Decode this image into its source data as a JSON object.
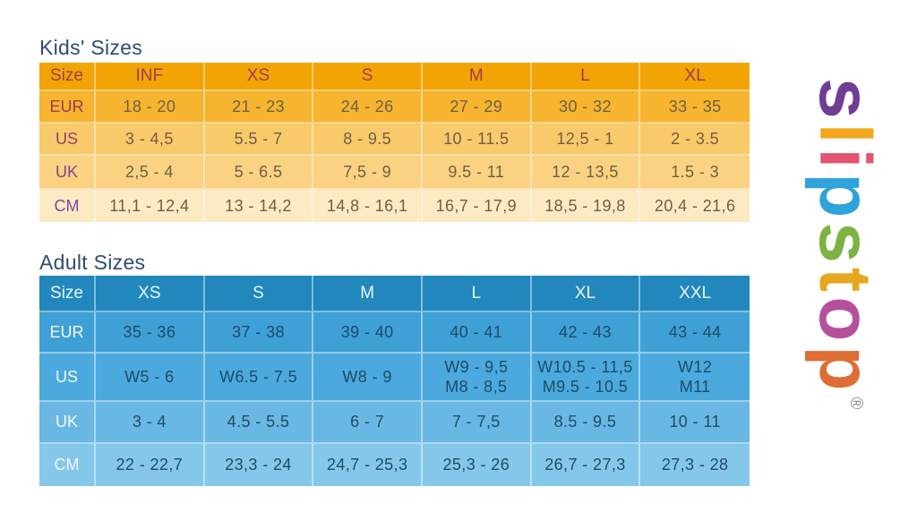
{
  "titles_color": "#2E4D6E",
  "kids_table": {
    "title": "Kids' Sizes",
    "columns": [
      "Size",
      "INF",
      "XS",
      "S",
      "M",
      "L",
      "XL"
    ],
    "rows": [
      {
        "label": "EUR",
        "values": [
          "18 - 20",
          "21 - 23",
          "24 - 26",
          "27 - 29",
          "30 - 32",
          "33 - 35"
        ]
      },
      {
        "label": "US",
        "values": [
          "3 - 4,5",
          "5.5 - 7",
          "8 - 9.5",
          "10 - 11.5",
          "12,5 - 1",
          "2 - 3.5"
        ]
      },
      {
        "label": "UK",
        "values": [
          "2,5 - 4",
          "5 - 6.5",
          "7,5 - 9",
          "9.5 - 11",
          "12 - 13,5",
          "1.5 - 3"
        ]
      },
      {
        "label": "CM",
        "values": [
          "11,1 - 12,4",
          "13 - 14,2",
          "14,8 - 16,1",
          "16,7 - 17,9",
          "18,5 - 19,8",
          "20,4 - 21,6"
        ]
      }
    ],
    "colors": {
      "header_bg": "#F2A405",
      "header_text": "#A23B52",
      "row_bgs": [
        "#F6B42F",
        "#F9CA69",
        "#FAD282",
        "#FCEAC3"
      ],
      "label_texts": [
        "#9C3A56",
        "#934070",
        "#7E4492",
        "#7A4A9E"
      ],
      "data_text": "#6E5F45"
    }
  },
  "adult_table": {
    "title": "Adult Sizes",
    "columns": [
      "Size",
      "XS",
      "S",
      "M",
      "L",
      "XL",
      "XXL"
    ],
    "rows": [
      {
        "label": "EUR",
        "values": [
          "35 - 36",
          "37 - 38",
          "39 - 40",
          "40 - 41",
          "42 - 43",
          "43 - 44"
        ]
      },
      {
        "label": "US",
        "values": [
          "W5 - 6",
          "W6.5 - 7.5",
          "W8 - 9",
          "W9 - 9,5\nM8 - 8,5",
          "W10.5 - 11,5\nM9.5 - 10.5",
          "W12\nM11"
        ]
      },
      {
        "label": "UK",
        "values": [
          "3 - 4",
          "4.5 - 5.5",
          "6 - 7",
          "7 - 7,5",
          "8.5 - 9.5",
          "10 - 11"
        ]
      },
      {
        "label": "CM",
        "values": [
          "22 - 22,7",
          "23,3 - 24",
          "24,7 - 25,3",
          "25,3 - 26",
          "26,7 - 27,3",
          "27,3 - 28"
        ]
      }
    ],
    "colors": {
      "header_bg": "#2187BD",
      "header_text": "#EAF6FC",
      "row_bgs": [
        "#3FA0D6",
        "#4BA9DD",
        "#69B8E3",
        "#85C7EA"
      ],
      "label_texts": [
        "#F2FAFE",
        "#F2FAFE",
        "#F2FAFE",
        "#F2FAFE"
      ],
      "data_text": "#1D4C66"
    }
  },
  "logo": {
    "text": "slipstop",
    "letters": [
      {
        "char": "s",
        "color": "#6F3D91"
      },
      {
        "char": "l",
        "color": "#F2A71E"
      },
      {
        "char": "i",
        "color": "#E4536F"
      },
      {
        "char": "p",
        "color": "#2FA3DC"
      },
      {
        "char": "s",
        "color": "#7CB342"
      },
      {
        "char": "t",
        "color": "#E8A51F"
      },
      {
        "char": "o",
        "color": "#B5519C"
      },
      {
        "char": "p",
        "color": "#DE6E35"
      }
    ],
    "registered_mark": "®",
    "registered_color": "#8A8A8A"
  }
}
